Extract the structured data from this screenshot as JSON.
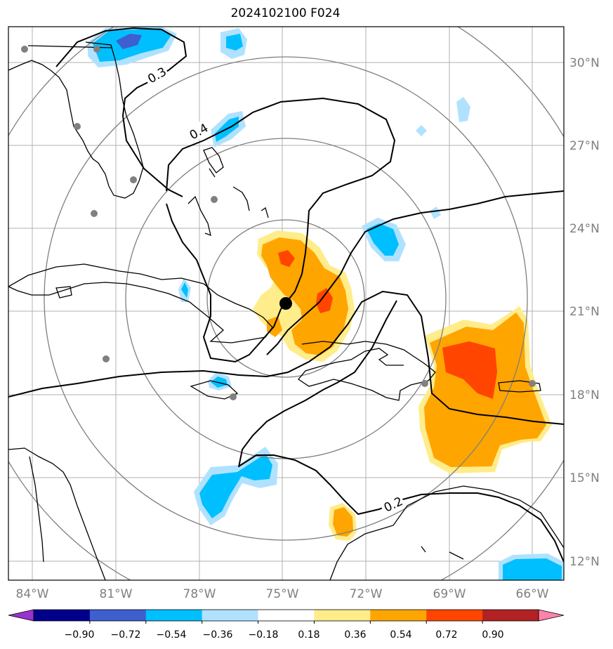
{
  "map": {
    "title": "2024102100 F024",
    "lat_labels": [
      "30°N",
      "27°N",
      "24°N",
      "21°N",
      "18°N",
      "15°N",
      "12°N"
    ],
    "lon_labels": [
      "84°W",
      "81°W",
      "78°W",
      "75°W",
      "72°W",
      "69°W",
      "66°W"
    ],
    "contour_labels": [
      "0.3",
      "0.4",
      "0.2"
    ],
    "colorbar": {
      "ticks": [
        "−0.90",
        "−0.72",
        "−0.54",
        "−0.36",
        "−0.18",
        "0.18",
        "0.36",
        "0.54",
        "0.72",
        "0.90"
      ],
      "colors": [
        "#9932cc",
        "#00008b",
        "#3d5fcf",
        "#00bfff",
        "#b0e2ff",
        "#ffffff",
        "#ffec8b",
        "#ffa500",
        "#ff4500",
        "#b22222",
        "#ff82ab"
      ]
    }
  }
}
